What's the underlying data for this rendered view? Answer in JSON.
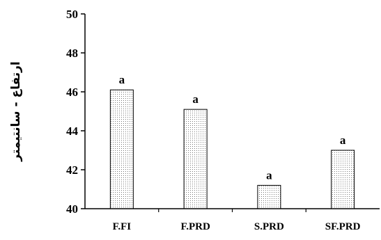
{
  "chart_data": {
    "type": "bar",
    "title": "",
    "xlabel": "",
    "ylabel": "ارتفاع - سانتيمتر",
    "categories": [
      "F.FI",
      "F.PRD",
      "S.PRD",
      "SF.PRD"
    ],
    "values": [
      46.1,
      45.1,
      41.2,
      43.0
    ],
    "data_labels": [
      "a",
      "a",
      "a",
      "a"
    ],
    "ylim": [
      40,
      50
    ],
    "yticks": [
      40,
      42,
      44,
      46,
      48,
      50
    ],
    "grid": false,
    "legend": "none",
    "bar_fill": "dotted-gray",
    "colors": {
      "bar_stroke": "#000000",
      "bar_dots": "#777777",
      "bar_bg": "#ffffff"
    }
  }
}
